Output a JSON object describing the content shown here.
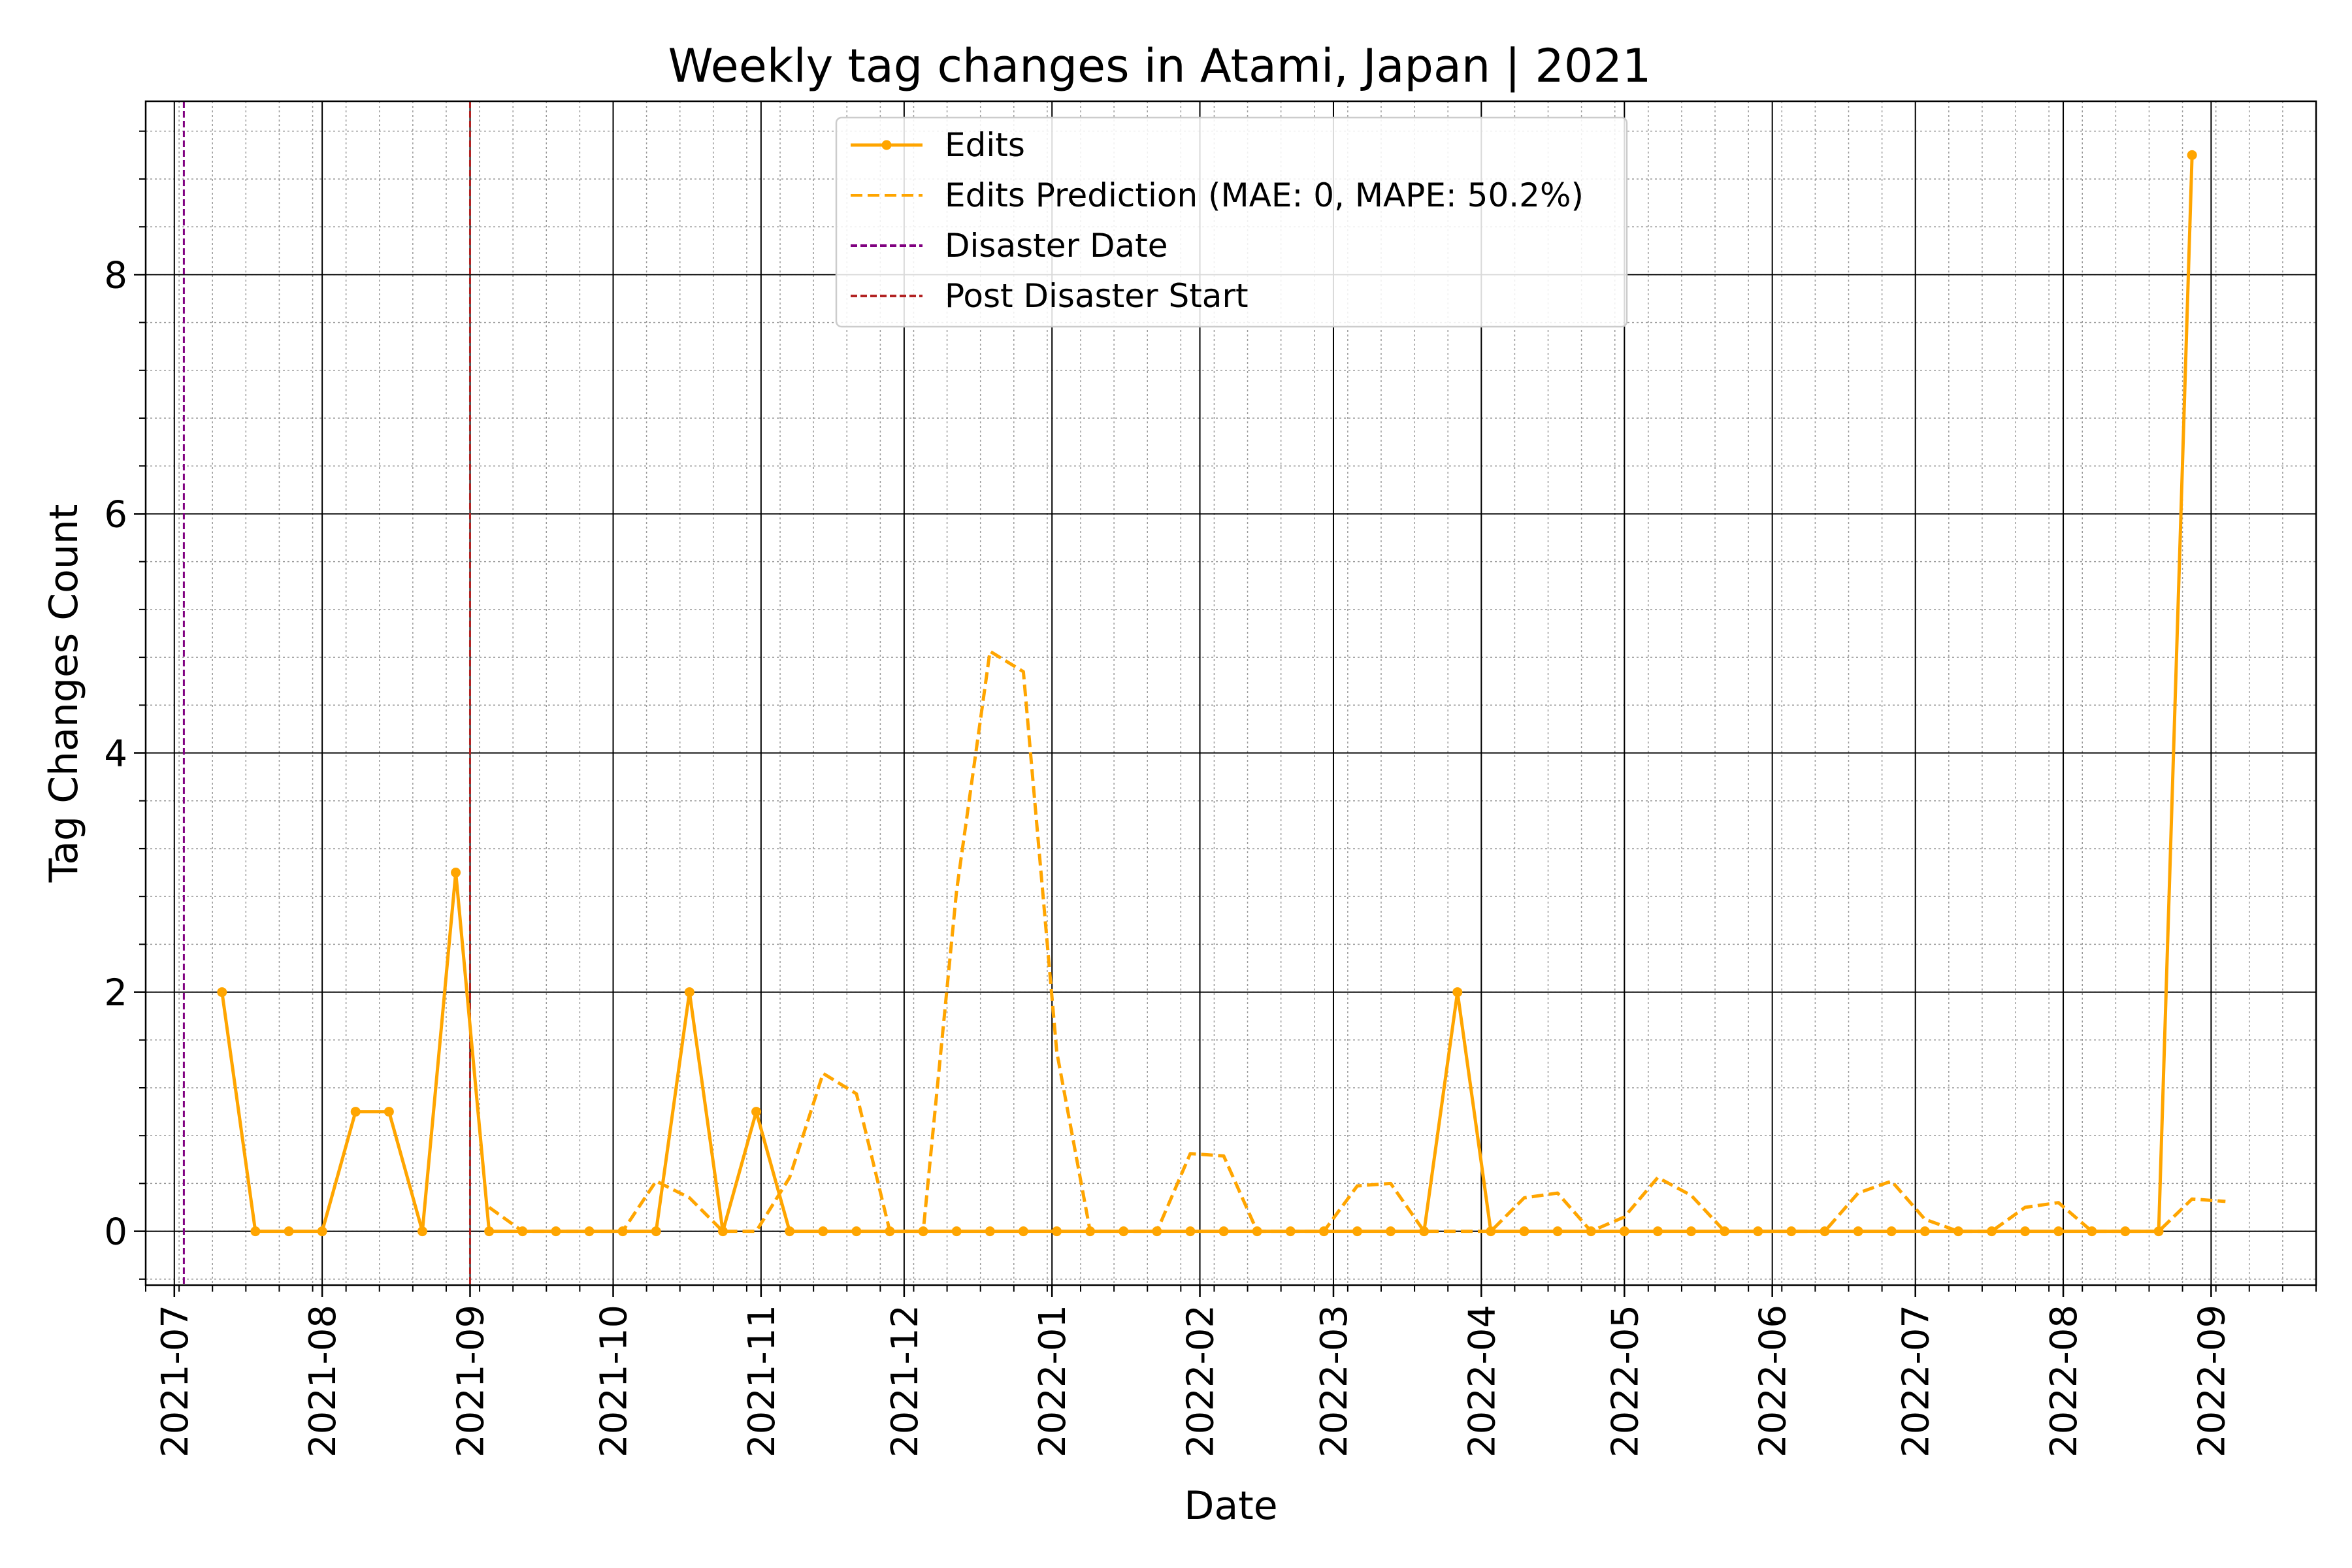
{
  "chart_data": {
    "type": "line",
    "title": "Weekly tag changes in Atami, Japan | 2021",
    "xlabel": "Date",
    "ylabel": "Tag Changes Count",
    "x_axis": {
      "type": "date",
      "range": [
        "2021-06-25",
        "2022-09-23"
      ],
      "tick_labels": [
        "2021-07",
        "2021-08",
        "2021-09",
        "2021-10",
        "2021-11",
        "2021-12",
        "2022-01",
        "2022-02",
        "2022-03",
        "2022-04",
        "2022-05",
        "2022-06",
        "2022-07",
        "2022-08",
        "2022-09"
      ]
    },
    "y_axis": {
      "range": [
        -0.45,
        9.45
      ],
      "ticks": [
        0,
        2,
        4,
        6,
        8
      ],
      "tick_labels": [
        "0",
        "2",
        "4",
        "6",
        "8"
      ]
    },
    "grid": {
      "major": true,
      "minor": true
    },
    "legend_position": "top-center",
    "series": [
      {
        "name": "Edits",
        "style": "solid-line-with-markers",
        "color": "#FFA500",
        "x": [
          "2021-07-11",
          "2021-07-18",
          "2021-07-25",
          "2021-08-01",
          "2021-08-08",
          "2021-08-15",
          "2021-08-22",
          "2021-08-29",
          "2021-09-05",
          "2021-09-12",
          "2021-09-19",
          "2021-09-26",
          "2021-10-03",
          "2021-10-10",
          "2021-10-17",
          "2021-10-24",
          "2021-10-31",
          "2021-11-07",
          "2021-11-14",
          "2021-11-21",
          "2021-11-28",
          "2021-12-05",
          "2021-12-12",
          "2021-12-19",
          "2021-12-26",
          "2022-01-02",
          "2022-01-09",
          "2022-01-16",
          "2022-01-23",
          "2022-01-30",
          "2022-02-06",
          "2022-02-13",
          "2022-02-20",
          "2022-02-27",
          "2022-03-06",
          "2022-03-13",
          "2022-03-20",
          "2022-03-27",
          "2022-04-03",
          "2022-04-10",
          "2022-04-17",
          "2022-04-24",
          "2022-05-01",
          "2022-05-08",
          "2022-05-15",
          "2022-05-22",
          "2022-05-29",
          "2022-06-05",
          "2022-06-12",
          "2022-06-19",
          "2022-06-26",
          "2022-07-03",
          "2022-07-10",
          "2022-07-17",
          "2022-07-24",
          "2022-07-31",
          "2022-08-07",
          "2022-08-14",
          "2022-08-21",
          "2022-08-28"
        ],
        "values": [
          2,
          0,
          0,
          0,
          1,
          1,
          0,
          3,
          0,
          0,
          0,
          0,
          0,
          0,
          2,
          0,
          1,
          0,
          0,
          0,
          0,
          0,
          0,
          0,
          0,
          0,
          0,
          0,
          0,
          0,
          0,
          0,
          0,
          0,
          0,
          0,
          0,
          2,
          0,
          0,
          0,
          0,
          0,
          0,
          0,
          0,
          0,
          0,
          0,
          0,
          0,
          0,
          0,
          0,
          0,
          0,
          0,
          0,
          0,
          9
        ]
      },
      {
        "name": "Edits Prediction (MAE: 0, MAPE: 50.2%)",
        "style": "dashed-line",
        "color": "#FFA500",
        "x": [
          "2021-09-05",
          "2021-09-12",
          "2021-09-19",
          "2021-09-26",
          "2021-10-03",
          "2021-10-10",
          "2021-10-17",
          "2021-10-24",
          "2021-10-31",
          "2021-11-07",
          "2021-11-14",
          "2021-11-21",
          "2021-11-28",
          "2021-12-05",
          "2021-12-12",
          "2021-12-19",
          "2021-12-26",
          "2022-01-02",
          "2022-01-09",
          "2022-01-16",
          "2022-01-23",
          "2022-01-30",
          "2022-02-06",
          "2022-02-13",
          "2022-02-20",
          "2022-02-27",
          "2022-03-06",
          "2022-03-13",
          "2022-03-20",
          "2022-03-27",
          "2022-04-03",
          "2022-04-10",
          "2022-04-17",
          "2022-04-24",
          "2022-05-01",
          "2022-05-08",
          "2022-05-15",
          "2022-05-22",
          "2022-05-29",
          "2022-06-05",
          "2022-06-12",
          "2022-06-19",
          "2022-06-26",
          "2022-07-03",
          "2022-07-10",
          "2022-07-17",
          "2022-07-24",
          "2022-07-31",
          "2022-08-07",
          "2022-08-14",
          "2022-08-21",
          "2022-08-28",
          "2022-09-04"
        ],
        "values": [
          0.2,
          0,
          0,
          0,
          0,
          0.42,
          0.28,
          0,
          0,
          0.45,
          1.32,
          1.15,
          0,
          0,
          2.85,
          4.85,
          4.68,
          1.5,
          0,
          0,
          0,
          0.65,
          0.63,
          0,
          0,
          0,
          0.38,
          0.4,
          0,
          0,
          0,
          0.28,
          0.32,
          0,
          0.12,
          0.45,
          0.3,
          0,
          0,
          0,
          0,
          0.32,
          0.42,
          0.1,
          0,
          0,
          0.2,
          0.24,
          0,
          0,
          0,
          0.27,
          0.25
        ]
      }
    ],
    "vertical_lines": [
      {
        "name": "Disaster Date",
        "x": "2021-07-03",
        "style": "dashed",
        "color": "#800080"
      },
      {
        "name": "Post Disaster Start",
        "x": "2021-09-01",
        "style": "dashed",
        "color": "#B22222"
      }
    ],
    "legend": [
      {
        "label": "Edits",
        "kind": "line-marker",
        "color": "#FFA500"
      },
      {
        "label": "Edits Prediction (MAE: 0, MAPE: 50.2%)",
        "kind": "dashed",
        "color": "#FFA500"
      },
      {
        "label": "Disaster Date",
        "kind": "dashed",
        "color": "#800080"
      },
      {
        "label": "Post Disaster Start",
        "kind": "dashed",
        "color": "#B22222"
      }
    ]
  }
}
